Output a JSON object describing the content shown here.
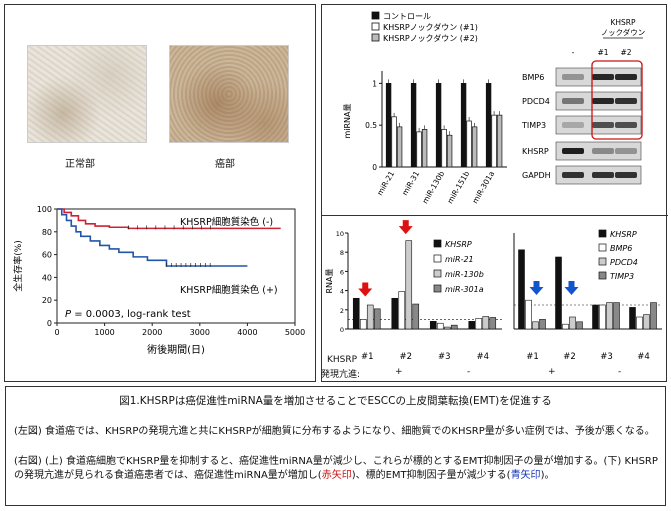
{
  "left_panel": {
    "image_labels": [
      "正常部",
      "癌部"
    ],
    "km": {
      "y_axis_label": "全生存率(%)",
      "x_axis_label": "術後期間(日)",
      "y_ticks": [
        "100",
        "80",
        "60",
        "40",
        "20",
        "0"
      ],
      "x_ticks": [
        "0",
        "1000",
        "2000",
        "3000",
        "4000",
        "5000"
      ],
      "label_neg": "KHSRP細胞質染色 (-)",
      "label_pos": "KHSRP細胞質染色 (+)",
      "stat_p": "P",
      "stat_text": " = 0.0003, log-rank test",
      "colors": {
        "neg": "#cc2233",
        "pos": "#2255aa"
      }
    }
  },
  "right_top": {
    "legend": [
      "コントロール",
      "KHSRPノックダウン (#1)",
      "KHSRPノックダウン (#2)"
    ],
    "ylabel": "miRNA量",
    "yticks": [
      "1",
      "0.5",
      "0"
    ],
    "categories": [
      "miR-21",
      "miR-31",
      "miR-130b",
      "miR-151b",
      "miR-301a"
    ],
    "blot_header": "KHSRP\nノックダウン",
    "blot_header_line1": "KHSRP",
    "blot_header_line2": "ノックダウン",
    "lane_labels": [
      "-",
      "#1",
      "#2"
    ],
    "blot_bands": [
      "BMP6",
      "PDCD4",
      "TIMP3",
      "KHSRP",
      "GAPDH"
    ]
  },
  "right_bottom_left": {
    "ylabel": "RNA量",
    "yticks": [
      "10",
      "8",
      "6",
      "4",
      "2",
      "0"
    ],
    "legend": [
      "KHSRP",
      "miR-21",
      "miR-130b",
      "miR-301a"
    ],
    "groups": [
      "#1",
      "#2",
      "#3",
      "#4"
    ]
  },
  "right_bottom_right": {
    "legend": [
      "KHSRP",
      "BMP6",
      "PDCD4",
      "TIMP3"
    ],
    "groups": [
      "#1",
      "#2",
      "#3",
      "#4"
    ]
  },
  "row_labels": {
    "khsrp": "KHSRP",
    "expression": "発現亢進:",
    "plus1": "+",
    "minus1": "-",
    "plus2": "+",
    "minus2": "-"
  },
  "chart_data": [
    {
      "type": "line",
      "title": "",
      "xlabel": "術後期間(日)",
      "ylabel": "全生存率(%)",
      "xlim": [
        0,
        5000
      ],
      "ylim": [
        0,
        100
      ],
      "series": [
        {
          "name": "KHSRP細胞質染色 (-)",
          "x": [
            0,
            150,
            300,
            450,
            600,
            800,
            1100,
            1500,
            4700
          ],
          "y": [
            100,
            97,
            94,
            90,
            87,
            85,
            84,
            83,
            83
          ]
        },
        {
          "name": "KHSRP細胞質染色 (+)",
          "x": [
            0,
            100,
            200,
            300,
            400,
            500,
            700,
            900,
            1100,
            1300,
            1600,
            1900,
            2300,
            4000
          ],
          "y": [
            100,
            95,
            90,
            85,
            80,
            76,
            72,
            68,
            65,
            62,
            58,
            55,
            50,
            50
          ]
        }
      ]
    },
    {
      "type": "bar",
      "categories": [
        "miR-21",
        "miR-31",
        "miR-130b",
        "miR-151b",
        "miR-301a"
      ],
      "ylim": [
        0,
        1.1
      ],
      "series": [
        {
          "name": "コントロール",
          "values": [
            1,
            1,
            1,
            1,
            1
          ]
        },
        {
          "name": "KHSRPノックダウン (#1)",
          "values": [
            0.6,
            0.42,
            0.45,
            0.55,
            0.62
          ]
        },
        {
          "name": "KHSRPノックダウン (#2)",
          "values": [
            0.48,
            0.45,
            0.38,
            0.48,
            0.62
          ]
        }
      ]
    },
    {
      "type": "bar",
      "categories": [
        "#1",
        "#2",
        "#3",
        "#4"
      ],
      "ylim": [
        0,
        10
      ],
      "series": [
        {
          "name": "KHSRP",
          "values": [
            3.2,
            3.2,
            0.8,
            0.8
          ]
        },
        {
          "name": "miR-21",
          "values": [
            1.0,
            3.9,
            0.6,
            1.1
          ]
        },
        {
          "name": "miR-130b",
          "values": [
            2.5,
            9.2,
            0.2,
            1.3
          ]
        },
        {
          "name": "miR-301a",
          "values": [
            2.1,
            2.6,
            0.4,
            1.2
          ]
        }
      ]
    },
    {
      "type": "bar",
      "categories": [
        "#1",
        "#2",
        "#3",
        "#4"
      ],
      "ylim": [
        0,
        4
      ],
      "series": [
        {
          "name": "KHSRP",
          "values": [
            3.3,
            3.0,
            1.0,
            0.9
          ]
        },
        {
          "name": "BMP6",
          "values": [
            1.2,
            0.2,
            1.0,
            0.5
          ]
        },
        {
          "name": "PDCD4",
          "values": [
            0.3,
            0.5,
            1.1,
            0.6
          ]
        },
        {
          "name": "TIMP3",
          "values": [
            0.4,
            0.3,
            1.1,
            1.1
          ]
        }
      ]
    }
  ],
  "caption": {
    "title": "図1.KHSRPは癌促進性miRNA量を増加させることでESCCの上皮間葉転換(EMT)を促進する",
    "p1": "(左図) 食道癌では、KHSRPの発現亢進と共にKHSRPが細胞質に分布するようになり、細胞質でのKHSRP量が多い症例では、予後が悪くなる。",
    "p2_a": "(右図) (上) 食道癌細胞でKHSRP量を抑制すると、癌促進性miRNA量が減少し、これらが標的とするEMT抑制因子の量が増加する。(下) KHSRPの発現亢進が見られる食道癌患者では、癌促進性miRNA量が増加し(",
    "p2_red": "赤矢印",
    "p2_b": ")、標的EMT抑制因子量が減少する(",
    "p2_blue": "青矢印",
    "p2_c": ")。"
  }
}
